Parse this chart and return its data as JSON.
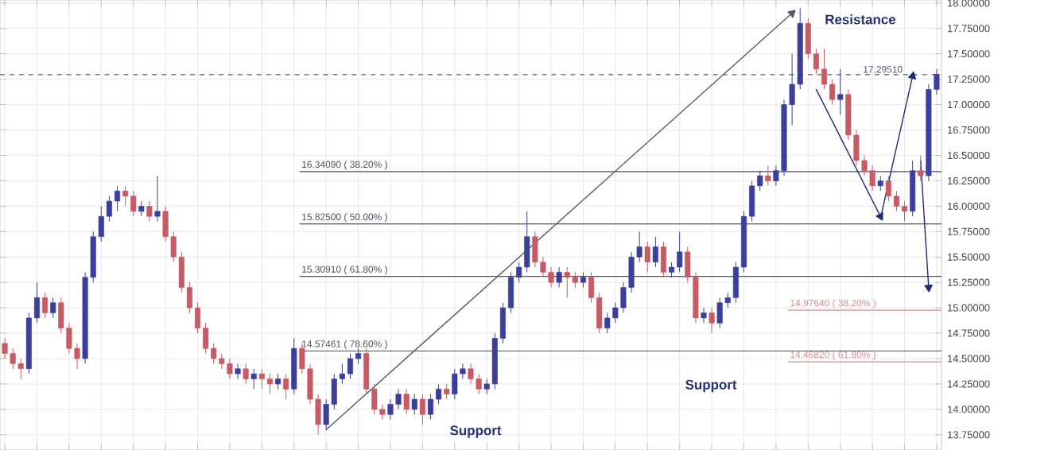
{
  "chart_data": {
    "type": "candlestick",
    "categories": [
      null,
      null,
      null,
      null,
      null,
      null,
      null,
      null,
      null,
      null,
      null,
      null,
      null,
      null,
      null,
      null,
      null,
      null,
      null,
      null,
      null,
      null,
      null,
      null,
      null,
      null,
      null,
      null,
      null,
      null,
      null,
      null,
      null,
      null,
      null,
      null,
      null,
      null,
      null,
      null,
      null,
      null,
      null,
      null,
      null,
      null,
      null,
      null,
      null,
      null,
      null,
      null,
      null,
      null,
      null,
      null,
      null,
      null,
      null,
      null,
      null,
      null,
      null,
      null,
      null,
      null,
      null,
      null,
      null,
      null,
      null,
      null,
      null,
      null,
      null,
      null,
      null,
      null,
      null,
      null,
      null,
      null,
      null,
      null,
      null,
      null,
      null,
      null,
      null,
      null,
      null,
      null,
      null,
      null,
      null,
      null,
      null,
      null,
      null,
      null,
      null,
      null,
      null,
      null,
      null,
      null,
      null,
      null,
      null,
      null,
      null,
      null,
      null,
      null,
      null,
      null,
      null
    ],
    "ohlc": [
      [
        14.65,
        14.7,
        14.5,
        14.55
      ],
      [
        14.55,
        14.6,
        14.4,
        14.45
      ],
      [
        14.45,
        14.5,
        14.3,
        14.4
      ],
      [
        14.4,
        14.95,
        14.35,
        14.9
      ],
      [
        14.9,
        15.25,
        14.85,
        15.1
      ],
      [
        15.1,
        15.15,
        14.9,
        14.95
      ],
      [
        14.95,
        15.1,
        14.9,
        15.05
      ],
      [
        15.05,
        15.1,
        14.75,
        14.8
      ],
      [
        14.8,
        14.85,
        14.55,
        14.6
      ],
      [
        14.6,
        14.65,
        14.4,
        14.5
      ],
      [
        14.5,
        15.35,
        14.45,
        15.3
      ],
      [
        15.3,
        15.75,
        15.25,
        15.7
      ],
      [
        15.7,
        16.0,
        15.65,
        15.9
      ],
      [
        15.9,
        16.1,
        15.85,
        16.05
      ],
      [
        16.05,
        16.2,
        15.95,
        16.15
      ],
      [
        16.15,
        16.2,
        16.0,
        16.1
      ],
      [
        16.1,
        16.15,
        15.9,
        15.95
      ],
      [
        15.95,
        16.05,
        15.9,
        16.0
      ],
      [
        16.0,
        16.05,
        15.85,
        15.9
      ],
      [
        15.9,
        16.3,
        15.85,
        15.95
      ],
      [
        15.95,
        16.0,
        15.65,
        15.7
      ],
      [
        15.7,
        15.75,
        15.45,
        15.5
      ],
      [
        15.5,
        15.55,
        15.15,
        15.2
      ],
      [
        15.2,
        15.25,
        14.95,
        15.0
      ],
      [
        15.0,
        15.05,
        14.75,
        14.8
      ],
      [
        14.8,
        14.85,
        14.55,
        14.6
      ],
      [
        14.6,
        14.65,
        14.45,
        14.5
      ],
      [
        14.5,
        14.55,
        14.4,
        14.45
      ],
      [
        14.45,
        14.5,
        14.3,
        14.35
      ],
      [
        14.35,
        14.45,
        14.3,
        14.4
      ],
      [
        14.4,
        14.45,
        14.25,
        14.3
      ],
      [
        14.3,
        14.4,
        14.2,
        14.35
      ],
      [
        14.35,
        14.4,
        14.2,
        14.3
      ],
      [
        14.3,
        14.35,
        14.15,
        14.25
      ],
      [
        14.25,
        14.35,
        14.2,
        14.3
      ],
      [
        14.3,
        14.35,
        14.1,
        14.2
      ],
      [
        14.2,
        14.7,
        14.15,
        14.6
      ],
      [
        14.6,
        14.65,
        14.35,
        14.4
      ],
      [
        14.4,
        14.45,
        14.05,
        14.1
      ],
      [
        14.1,
        14.15,
        13.75,
        13.85
      ],
      [
        13.85,
        14.1,
        13.8,
        14.05
      ],
      [
        14.05,
        14.35,
        14.0,
        14.3
      ],
      [
        14.3,
        14.45,
        14.25,
        14.35
      ],
      [
        14.35,
        14.55,
        14.3,
        14.5
      ],
      [
        14.5,
        14.6,
        14.45,
        14.55
      ],
      [
        14.55,
        14.6,
        14.15,
        14.2
      ],
      [
        14.2,
        14.25,
        13.95,
        14.0
      ],
      [
        14.0,
        14.05,
        13.9,
        13.95
      ],
      [
        13.95,
        14.1,
        13.9,
        14.05
      ],
      [
        14.05,
        14.2,
        14.0,
        14.15
      ],
      [
        14.15,
        14.2,
        13.95,
        14.0
      ],
      [
        14.0,
        14.15,
        13.95,
        14.1
      ],
      [
        14.1,
        14.15,
        13.85,
        13.95
      ],
      [
        13.95,
        14.15,
        13.9,
        14.1
      ],
      [
        14.1,
        14.25,
        14.05,
        14.2
      ],
      [
        14.2,
        14.25,
        14.1,
        14.15
      ],
      [
        14.15,
        14.4,
        14.1,
        14.35
      ],
      [
        14.35,
        14.45,
        14.3,
        14.4
      ],
      [
        14.4,
        14.45,
        14.25,
        14.3
      ],
      [
        14.3,
        14.35,
        14.15,
        14.2
      ],
      [
        14.2,
        14.3,
        14.15,
        14.25
      ],
      [
        14.25,
        14.75,
        14.2,
        14.7
      ],
      [
        14.7,
        15.05,
        14.65,
        15.0
      ],
      [
        15.0,
        15.35,
        14.95,
        15.3
      ],
      [
        15.3,
        15.45,
        15.25,
        15.4
      ],
      [
        15.4,
        15.95,
        15.35,
        15.7
      ],
      [
        15.7,
        15.75,
        15.4,
        15.45
      ],
      [
        15.45,
        15.5,
        15.3,
        15.35
      ],
      [
        15.35,
        15.4,
        15.2,
        15.25
      ],
      [
        15.25,
        15.4,
        15.2,
        15.35
      ],
      [
        15.35,
        15.4,
        15.1,
        15.3
      ],
      [
        15.3,
        15.35,
        15.2,
        15.25
      ],
      [
        15.25,
        15.35,
        15.2,
        15.3
      ],
      [
        15.3,
        15.35,
        15.05,
        15.1
      ],
      [
        15.1,
        15.15,
        14.75,
        14.8
      ],
      [
        14.8,
        14.95,
        14.75,
        14.9
      ],
      [
        14.9,
        15.05,
        14.85,
        15.0
      ],
      [
        15.0,
        15.25,
        14.95,
        15.2
      ],
      [
        15.2,
        15.55,
        15.15,
        15.5
      ],
      [
        15.5,
        15.75,
        15.45,
        15.6
      ],
      [
        15.6,
        15.65,
        15.35,
        15.45
      ],
      [
        15.45,
        15.7,
        15.4,
        15.6
      ],
      [
        15.6,
        15.65,
        15.3,
        15.35
      ],
      [
        15.35,
        15.45,
        15.3,
        15.4
      ],
      [
        15.4,
        15.75,
        15.35,
        15.55
      ],
      [
        15.55,
        15.6,
        15.25,
        15.3
      ],
      [
        15.3,
        15.35,
        14.85,
        14.9
      ],
      [
        14.9,
        15.0,
        14.85,
        14.95
      ],
      [
        14.95,
        15.0,
        14.75,
        14.85
      ],
      [
        14.85,
        15.1,
        14.8,
        15.05
      ],
      [
        15.05,
        15.15,
        15.0,
        15.1
      ],
      [
        15.1,
        15.45,
        15.05,
        15.4
      ],
      [
        15.4,
        15.95,
        15.35,
        15.9
      ],
      [
        15.9,
        16.25,
        15.85,
        16.2
      ],
      [
        16.2,
        16.35,
        16.15,
        16.3
      ],
      [
        16.3,
        16.4,
        16.2,
        16.25
      ],
      [
        16.25,
        16.4,
        16.2,
        16.35
      ],
      [
        16.35,
        17.05,
        16.3,
        17.0
      ],
      [
        17.0,
        17.5,
        16.8,
        17.2
      ],
      [
        17.2,
        17.95,
        17.15,
        17.8
      ],
      [
        17.8,
        17.85,
        17.45,
        17.5
      ],
      [
        17.5,
        17.55,
        17.3,
        17.35
      ],
      [
        17.35,
        17.55,
        17.15,
        17.2
      ],
      [
        17.2,
        17.25,
        17.0,
        17.05
      ],
      [
        17.05,
        17.35,
        16.9,
        17.1
      ],
      [
        17.1,
        17.15,
        16.65,
        16.7
      ],
      [
        16.7,
        16.75,
        16.4,
        16.45
      ],
      [
        16.45,
        16.5,
        16.3,
        16.35
      ],
      [
        16.35,
        16.4,
        16.15,
        16.2
      ],
      [
        16.2,
        16.3,
        16.15,
        16.25
      ],
      [
        16.25,
        16.3,
        16.05,
        16.1
      ],
      [
        16.1,
        16.15,
        15.95,
        16.0
      ],
      [
        16.0,
        16.05,
        15.85,
        15.95
      ],
      [
        15.95,
        16.45,
        15.9,
        16.35
      ],
      [
        16.35,
        16.5,
        16.25,
        16.3
      ],
      [
        16.3,
        17.2,
        16.25,
        17.15
      ],
      [
        17.15,
        17.35,
        17.1,
        17.3
      ]
    ],
    "series": [
      {
        "type": "line",
        "color": "#555b6e",
        "values": [
          null,
          null,
          null,
          null,
          null,
          null,
          null,
          null,
          null,
          null,
          null,
          null,
          null,
          null,
          null,
          null,
          null,
          null,
          null,
          null,
          null,
          null,
          null,
          null,
          null,
          null,
          null,
          null,
          null,
          null,
          null,
          null,
          null,
          null,
          null,
          null,
          null,
          null,
          null,
          null,
          13.8,
          null,
          null,
          null,
          null,
          null,
          null,
          null,
          null,
          null,
          null,
          null,
          null,
          null,
          null,
          null,
          null,
          null,
          null,
          null,
          null,
          null,
          null,
          null,
          null,
          null,
          null,
          null,
          null,
          null,
          null,
          null,
          null,
          null,
          null,
          null,
          null,
          null,
          null,
          null,
          null,
          null,
          null,
          null,
          null,
          null,
          null,
          null,
          null,
          null,
          null,
          null,
          null,
          null,
          null,
          null,
          null,
          null,
          17.9,
          null,
          null,
          null,
          null,
          null,
          null,
          null,
          null,
          null,
          null,
          null,
          null,
          null,
          null,
          null,
          null,
          null,
          null
        ]
      },
      {
        "type": "line",
        "color": "#1f2a7a",
        "values": [
          null,
          null,
          null,
          null,
          null,
          null,
          null,
          null,
          null,
          null,
          null,
          null,
          null,
          null,
          null,
          null,
          null,
          null,
          null,
          null,
          null,
          null,
          null,
          null,
          null,
          null,
          null,
          null,
          null,
          null,
          null,
          null,
          null,
          null,
          null,
          null,
          null,
          null,
          null,
          null,
          null,
          null,
          null,
          null,
          null,
          null,
          null,
          null,
          null,
          null,
          null,
          null,
          null,
          null,
          null,
          null,
          null,
          null,
          null,
          null,
          null,
          null,
          null,
          null,
          null,
          null,
          null,
          null,
          null,
          null,
          null,
          null,
          null,
          null,
          null,
          null,
          null,
          null,
          null,
          null,
          null,
          null,
          null,
          null,
          null,
          null,
          null,
          null,
          null,
          null,
          null,
          null,
          null,
          null,
          null,
          null,
          null,
          null,
          null,
          null,
          null,
          17.15,
          null,
          null,
          null,
          null,
          null,
          null,
          null,
          15.9,
          null,
          null,
          null,
          null,
          null,
          null,
          null
        ]
      },
      {
        "type": "line",
        "color": "#1f2a7a",
        "values": [
          null,
          null,
          null,
          null,
          null,
          null,
          null,
          null,
          null,
          null,
          null,
          null,
          null,
          null,
          null,
          null,
          null,
          null,
          null,
          null,
          null,
          null,
          null,
          null,
          null,
          null,
          null,
          null,
          null,
          null,
          null,
          null,
          null,
          null,
          null,
          null,
          null,
          null,
          null,
          null,
          null,
          null,
          null,
          null,
          null,
          null,
          null,
          null,
          null,
          null,
          null,
          null,
          null,
          null,
          null,
          null,
          null,
          null,
          null,
          null,
          null,
          null,
          null,
          null,
          null,
          null,
          null,
          null,
          null,
          null,
          null,
          null,
          null,
          null,
          null,
          null,
          null,
          null,
          null,
          null,
          null,
          null,
          null,
          null,
          null,
          null,
          null,
          null,
          null,
          null,
          null,
          null,
          null,
          null,
          null,
          null,
          null,
          null,
          null,
          null,
          null,
          null,
          null,
          null,
          null,
          null,
          null,
          null,
          null,
          15.88,
          null,
          null,
          null,
          17.28,
          null,
          null,
          null
        ]
      },
      {
        "type": "line",
        "color": "#1f2a7a",
        "values": [
          null,
          null,
          null,
          null,
          null,
          null,
          null,
          null,
          null,
          null,
          null,
          null,
          null,
          null,
          null,
          null,
          null,
          null,
          null,
          null,
          null,
          null,
          null,
          null,
          null,
          null,
          null,
          null,
          null,
          null,
          null,
          null,
          null,
          null,
          null,
          null,
          null,
          null,
          null,
          null,
          null,
          null,
          null,
          null,
          null,
          null,
          null,
          null,
          null,
          null,
          null,
          null,
          null,
          null,
          null,
          null,
          null,
          null,
          null,
          null,
          null,
          null,
          null,
          null,
          null,
          null,
          null,
          null,
          null,
          null,
          null,
          null,
          null,
          null,
          null,
          null,
          null,
          null,
          null,
          null,
          null,
          null,
          null,
          null,
          null,
          null,
          null,
          null,
          null,
          null,
          null,
          null,
          null,
          null,
          null,
          null,
          null,
          null,
          null,
          null,
          null,
          null,
          null,
          null,
          null,
          null,
          null,
          null,
          null,
          null,
          null,
          null,
          null,
          null,
          16.45,
          15.2,
          null
        ]
      }
    ],
    "ylim": [
      13.6,
      18.03
    ],
    "yticks": [
      {
        "value": 13.75,
        "label": "13.75000"
      },
      {
        "value": 14.0,
        "label": "14.00000"
      },
      {
        "value": 14.25,
        "label": "14.25000"
      },
      {
        "value": 14.5,
        "label": "14.50000"
      },
      {
        "value": 14.75,
        "label": "14.75000"
      },
      {
        "value": 15.0,
        "label": "15.00000"
      },
      {
        "value": 15.25,
        "label": "15.25000"
      },
      {
        "value": 15.5,
        "label": "15.50000"
      },
      {
        "value": 15.75,
        "label": "15.75000"
      },
      {
        "value": 16.0,
        "label": "16.00000"
      },
      {
        "value": 16.25,
        "label": "16.25000"
      },
      {
        "value": 16.5,
        "label": "16.50000"
      },
      {
        "value": 16.75,
        "label": "16.75000"
      },
      {
        "value": 17.0,
        "label": "17.00000"
      },
      {
        "value": 17.25,
        "label": "17.25000"
      },
      {
        "value": 17.5,
        "label": "17.50000"
      },
      {
        "value": 17.75,
        "label": "17.75000"
      },
      {
        "value": 18.0,
        "label": "18.00000"
      }
    ],
    "ref_lines": [
      {
        "axis": "y",
        "value": 16.3409,
        "label": "16.34090 ( 38.20% )",
        "color": "#4d4f5c"
      },
      {
        "axis": "y",
        "value": 15.825,
        "label": "15.82500 ( 50.00% )",
        "color": "#4d4f5c"
      },
      {
        "axis": "y",
        "value": 15.3091,
        "label": "15.30910 ( 61.80% )",
        "color": "#4d4f5c"
      },
      {
        "axis": "y",
        "value": 14.57461,
        "label": "14.57461 ( 78.60% )",
        "color": "#4d4f5c"
      },
      {
        "axis": "y",
        "value": 14.9764,
        "label": "14.97640 ( 38.20% )",
        "color": "#d98c8c"
      },
      {
        "axis": "y",
        "value": 14.4682,
        "label": "14.46820 ( 61.80% )",
        "color": "#d98c8c"
      },
      {
        "axis": "y",
        "value": 17.2951,
        "label": "17.29510",
        "color": "#555b6e",
        "line_style": "dashed"
      }
    ],
    "annotations": [
      "Resistance",
      "Support",
      "Support"
    ],
    "grid": true,
    "tick_labels": "y"
  }
}
